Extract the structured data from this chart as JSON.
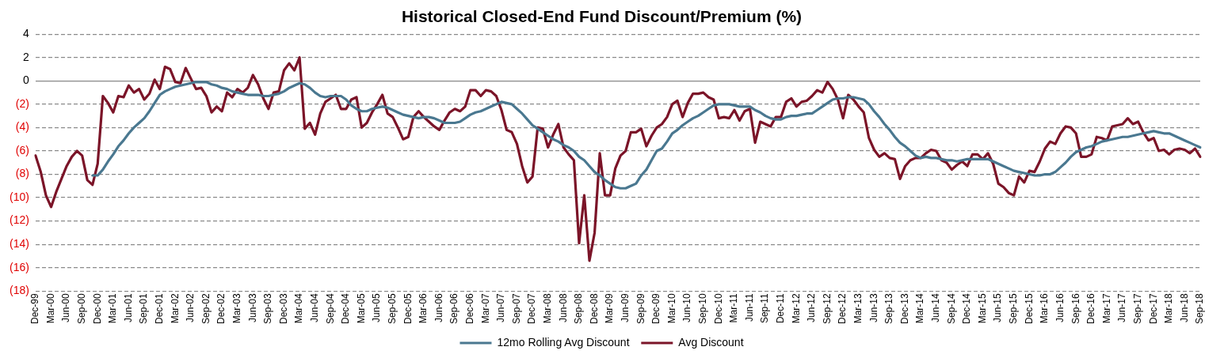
{
  "chart_data": {
    "type": "line",
    "title": "Historical Closed-End Fund Discount/Premium (%)",
    "categories": [
      "Dec-99",
      null,
      null,
      "Mar-00",
      null,
      null,
      "Jun-00",
      null,
      null,
      "Sep-00",
      null,
      null,
      "Dec-00",
      null,
      null,
      "Mar-01",
      null,
      null,
      "Jun-01",
      null,
      null,
      "Sep-01",
      null,
      null,
      "Dec-01",
      null,
      null,
      "Mar-02",
      null,
      null,
      "Jun-02",
      null,
      null,
      "Sep-02",
      null,
      null,
      "Dec-02",
      null,
      null,
      "Mar-03",
      null,
      null,
      "Jun-03",
      null,
      null,
      "Sep-03",
      null,
      null,
      "Dec-03",
      null,
      null,
      "Mar-04",
      null,
      null,
      "Jun-04",
      null,
      null,
      "Sep-04",
      null,
      null,
      "Dec-04",
      null,
      null,
      "Mar-05",
      null,
      null,
      "Jun-05",
      null,
      null,
      "Sep-05",
      null,
      null,
      "Dec-05",
      null,
      null,
      "Mar-06",
      null,
      null,
      "Jun-06",
      null,
      null,
      "Sep-06",
      null,
      null,
      "Dec-06",
      null,
      null,
      "Mar-07",
      null,
      null,
      "Jun-07",
      null,
      null,
      "Sep-07",
      null,
      null,
      "Dec-07",
      null,
      null,
      "Mar-08",
      null,
      null,
      "Jun-08",
      null,
      null,
      "Sep-08",
      null,
      null,
      "Dec-08",
      null,
      null,
      "Mar-09",
      null,
      null,
      "Jun-09",
      null,
      null,
      "Sep-09",
      null,
      null,
      "Dec-09",
      null,
      null,
      "Mar-10",
      null,
      null,
      "Jun-10",
      null,
      null,
      "Sep-10",
      null,
      null,
      "Dec-10",
      null,
      null,
      "Mar-11",
      null,
      null,
      "Jun-11",
      null,
      null,
      "Sep-11",
      null,
      null,
      "Dec-11",
      null,
      null,
      "Mar-12",
      null,
      null,
      "Jun-12",
      null,
      null,
      "Sep-12",
      null,
      null,
      "Dec-12",
      null,
      null,
      "Mar-13",
      null,
      null,
      "Jun-13",
      null,
      null,
      "Sep-13",
      null,
      null,
      "Dec-13",
      null,
      null,
      "Mar-14",
      null,
      null,
      "Jun-14",
      null,
      null,
      "Sep-14",
      null,
      null,
      "Dec-14",
      null,
      null,
      "Mar-15",
      null,
      null,
      "Jun-15",
      null,
      null,
      "Sep-15",
      null,
      null,
      "Dec-15",
      null,
      null,
      "Mar-16",
      null,
      null,
      "Jun-16",
      null,
      null,
      "Sep-16",
      null,
      null,
      "Dec-16",
      null,
      null,
      "Mar-17",
      null,
      null,
      "Jun-17",
      null,
      null,
      "Sep-17",
      null,
      null,
      "Dec-17",
      null,
      null,
      "Mar-18",
      null,
      null,
      "Jun-18",
      null,
      null,
      "Sep-18"
    ],
    "series": [
      {
        "name": "12mo Rolling Avg Discount",
        "color": "#4a7890",
        "values": [
          null,
          null,
          null,
          null,
          null,
          null,
          null,
          null,
          null,
          null,
          null,
          -8.1,
          -8.1,
          -7.6,
          -6.9,
          -6.3,
          -5.6,
          -5.1,
          -4.5,
          -4.0,
          -3.6,
          -3.2,
          -2.6,
          -1.9,
          -1.2,
          -0.9,
          -0.7,
          -0.5,
          -0.4,
          -0.3,
          -0.2,
          -0.1,
          -0.1,
          -0.1,
          -0.3,
          -0.4,
          -0.6,
          -0.7,
          -0.9,
          -1.0,
          -1.1,
          -1.2,
          -1.2,
          -1.2,
          -1.3,
          -1.3,
          -1.2,
          -1.1,
          -0.9,
          -0.6,
          -0.4,
          -0.2,
          -0.3,
          -0.6,
          -1.0,
          -1.3,
          -1.4,
          -1.3,
          -1.3,
          -1.3,
          -1.6,
          -2.1,
          -2.4,
          -2.6,
          -2.6,
          -2.4,
          -2.3,
          -2.2,
          -2.3,
          -2.5,
          -2.7,
          -2.9,
          -3.0,
          -3.1,
          -3.2,
          -3.1,
          -3.1,
          -3.2,
          -3.4,
          -3.6,
          -3.6,
          -3.6,
          -3.5,
          -3.2,
          -2.9,
          -2.7,
          -2.6,
          -2.4,
          -2.2,
          -2.0,
          -1.8,
          -1.9,
          -2.0,
          -2.4,
          -2.8,
          -3.3,
          -3.8,
          -4.1,
          -4.4,
          -4.7,
          -5.0,
          -5.2,
          -5.5,
          -5.7,
          -6.0,
          -6.5,
          -6.8,
          -7.3,
          -7.8,
          -8.1,
          -8.5,
          -8.8,
          -9.1,
          -9.2,
          -9.2,
          -9.0,
          -8.8,
          -8.1,
          -7.6,
          -6.8,
          -6.0,
          -5.8,
          -5.2,
          -4.5,
          -4.2,
          -3.8,
          -3.5,
          -3.2,
          -3.0,
          -2.7,
          -2.4,
          -2.1,
          -2.0,
          -2.0,
          -2.0,
          -2.1,
          -2.2,
          -2.2,
          -2.2,
          -2.5,
          -2.7,
          -3.0,
          -3.2,
          -3.3,
          -3.3,
          -3.1,
          -3.0,
          -3.0,
          -2.9,
          -2.8,
          -2.8,
          -2.5,
          -2.2,
          -1.9,
          -1.6,
          -1.5,
          -1.5,
          -1.4,
          -1.4,
          -1.5,
          -1.6,
          -2.0,
          -2.6,
          -3.1,
          -3.7,
          -4.2,
          -4.8,
          -5.3,
          -5.6,
          -6.0,
          -6.4,
          -6.6,
          -6.5,
          -6.6,
          -6.6,
          -6.7,
          -6.8,
          -6.8,
          -6.9,
          -6.8,
          -6.7,
          -6.7,
          -6.7,
          -6.7,
          -6.7,
          -6.9,
          -7.1,
          -7.3,
          -7.5,
          -7.7,
          -7.8,
          -7.9,
          -8.0,
          -8.1,
          -8.1,
          -8.0,
          -8.0,
          -7.8,
          -7.4,
          -7.0,
          -6.5,
          -6.1,
          -5.9,
          -5.7,
          -5.6,
          -5.4,
          -5.2,
          -5.1,
          -5.0,
          -4.9,
          -4.8,
          -4.8,
          -4.7,
          -4.6,
          -4.5,
          -4.4,
          -4.3,
          -4.4,
          -4.5,
          -4.5,
          -4.7,
          -4.9,
          -5.1,
          -5.3,
          -5.5,
          -5.7
        ]
      },
      {
        "name": "Avg Discount",
        "color": "#7b1428",
        "values": [
          -6.4,
          -7.8,
          -9.8,
          -10.8,
          -9.5,
          -8.4,
          -7.3,
          -6.5,
          -6.0,
          -6.4,
          -8.5,
          -8.9,
          -7.1,
          -1.3,
          -1.9,
          -2.7,
          -1.3,
          -1.4,
          -0.4,
          -1.0,
          -0.7,
          -1.6,
          -1.1,
          0.1,
          -0.7,
          1.2,
          1.0,
          -0.1,
          -0.2,
          1.1,
          0.2,
          -0.7,
          -0.6,
          -1.3,
          -2.7,
          -2.2,
          -2.6,
          -1.0,
          -1.4,
          -0.7,
          -1.0,
          -0.6,
          0.5,
          -0.3,
          -1.5,
          -2.4,
          -1.0,
          -0.9,
          0.9,
          1.5,
          0.9,
          2.0,
          -4.1,
          -3.6,
          -4.6,
          -2.8,
          -1.8,
          -1.5,
          -1.2,
          -2.4,
          -2.4,
          -1.6,
          -1.4,
          -4.0,
          -3.6,
          -2.7,
          -2.0,
          -1.2,
          -2.8,
          -3.1,
          -4.0,
          -5.0,
          -4.8,
          -3.1,
          -2.6,
          -3.1,
          -3.5,
          -3.9,
          -4.2,
          -3.4,
          -2.7,
          -2.4,
          -2.6,
          -2.2,
          -0.8,
          -0.8,
          -1.3,
          -0.8,
          -0.9,
          -1.3,
          -2.5,
          -4.2,
          -4.4,
          -5.4,
          -7.3,
          -8.7,
          -8.2,
          -4.0,
          -4.1,
          -5.7,
          -4.6,
          -3.7,
          -5.7,
          -6.3,
          -6.8,
          -13.9,
          -9.8,
          -15.4,
          -13.0,
          -6.2,
          -9.8,
          -9.8,
          -7.5,
          -6.4,
          -6.0,
          -4.4,
          -4.4,
          -4.1,
          -5.6,
          -4.7,
          -4.0,
          -3.7,
          -3.1,
          -2.0,
          -1.7,
          -3.1,
          -1.9,
          -1.1,
          -1.1,
          -1.0,
          -1.4,
          -1.6,
          -3.2,
          -3.1,
          -3.2,
          -2.5,
          -3.4,
          -2.6,
          -2.4,
          -5.3,
          -3.5,
          -3.7,
          -3.9,
          -3.1,
          -3.1,
          -1.8,
          -1.5,
          -2.2,
          -1.8,
          -1.7,
          -1.3,
          -0.8,
          -1.0,
          -0.1,
          -0.7,
          -1.6,
          -3.2,
          -1.2,
          -1.6,
          -2.2,
          -2.7,
          -4.9,
          -5.9,
          -6.5,
          -6.2,
          -6.6,
          -6.7,
          -8.4,
          -7.3,
          -6.8,
          -6.6,
          -6.6,
          -6.2,
          -5.9,
          -6.0,
          -6.8,
          -7.0,
          -7.6,
          -7.2,
          -6.9,
          -7.3,
          -6.3,
          -6.3,
          -6.7,
          -6.2,
          -7.1,
          -8.8,
          -9.1,
          -9.6,
          -9.8,
          -8.2,
          -8.7,
          -7.7,
          -7.8,
          -6.9,
          -5.8,
          -5.2,
          -5.4,
          -4.5,
          -3.9,
          -4.0,
          -4.5,
          -6.5,
          -6.5,
          -6.3,
          -4.8,
          -4.9,
          -5.1,
          -3.9,
          -3.8,
          -3.7,
          -3.2,
          -3.7,
          -3.5,
          -4.4,
          -5.1,
          -4.9,
          -6.0,
          -5.9,
          -6.3,
          -5.9,
          -5.8,
          -5.9,
          -6.2,
          -5.8,
          -6.5
        ]
      }
    ],
    "ylim": [
      -18,
      4
    ],
    "yticks": [
      4,
      2,
      0,
      {
        "value": -2,
        "label": "(2)"
      },
      {
        "value": -4,
        "label": "(4)"
      },
      {
        "value": -6,
        "label": "(6)"
      },
      {
        "value": -8,
        "label": "(8)"
      },
      {
        "value": -10,
        "label": "(10)"
      },
      {
        "value": -12,
        "label": "(12)"
      },
      {
        "value": -14,
        "label": "(14)"
      },
      {
        "value": -16,
        "label": "(16)"
      },
      {
        "value": -18,
        "label": "(18)"
      }
    ],
    "grid": "y",
    "legend": "bottom",
    "marker": "none",
    "line_style": "solid"
  }
}
